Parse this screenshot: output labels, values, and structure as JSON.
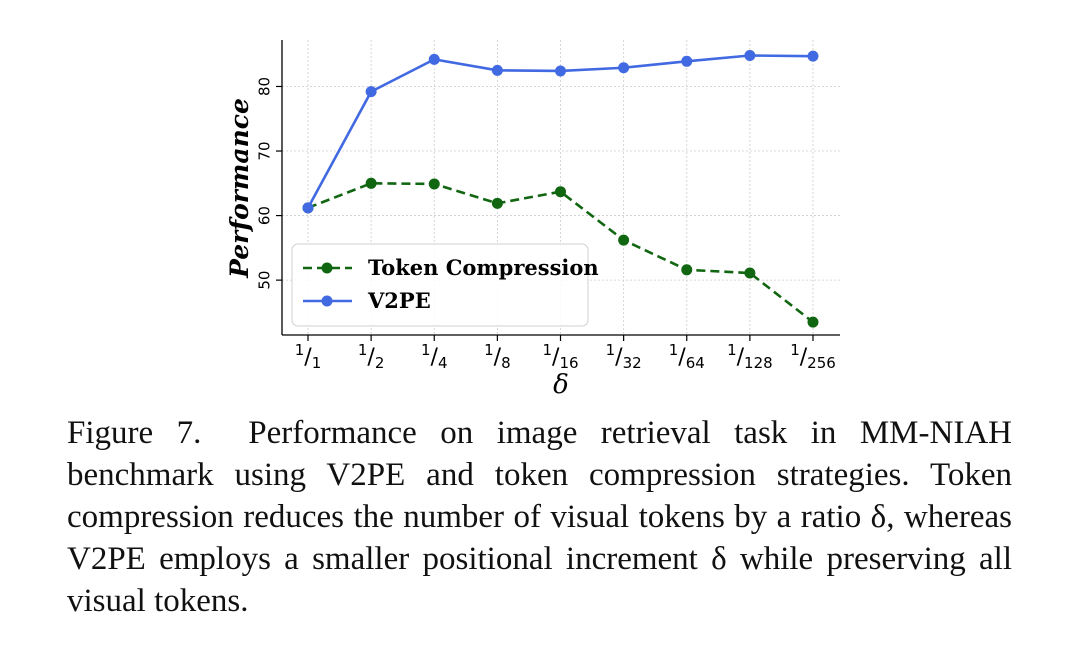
{
  "chart_data": {
    "type": "line",
    "categories": [
      "1/1",
      "1/2",
      "1/4",
      "1/8",
      "1/16",
      "1/32",
      "1/64",
      "1/128",
      "1/256"
    ],
    "tick_labels": [
      {
        "num": "1",
        "den": "1"
      },
      {
        "num": "1",
        "den": "2"
      },
      {
        "num": "1",
        "den": "4"
      },
      {
        "num": "1",
        "den": "8"
      },
      {
        "num": "1",
        "den": "16"
      },
      {
        "num": "1",
        "den": "32"
      },
      {
        "num": "1",
        "den": "64"
      },
      {
        "num": "1",
        "den": "128"
      },
      {
        "num": "1",
        "den": "256"
      }
    ],
    "series": [
      {
        "name": "Token Compression",
        "color": "#116611",
        "style": "dashed",
        "values": [
          61.2,
          65.0,
          64.9,
          61.9,
          63.7,
          56.2,
          51.6,
          51.1,
          43.5
        ]
      },
      {
        "name": "V2PE",
        "color": "#4169E1",
        "style": "solid",
        "values": [
          61.2,
          79.2,
          84.2,
          82.5,
          82.4,
          82.9,
          83.9,
          84.8,
          84.7
        ]
      }
    ],
    "xlabel": "δ",
    "ylabel": "Performance",
    "yticks": [
      50,
      60,
      70,
      80
    ],
    "ylim": [
      41.5,
      87.2
    ],
    "grid": true,
    "legend_position": "lower-left"
  },
  "caption": {
    "figure_label": "Figure 7.",
    "text": "Performance on image retrieval task in MM-NIAH benchmark using V2PE and token compression strategies. Token compression reduces the number of visual tokens by a ratio δ, whereas V2PE employs a smaller positional increment δ while preserving all visual tokens."
  }
}
